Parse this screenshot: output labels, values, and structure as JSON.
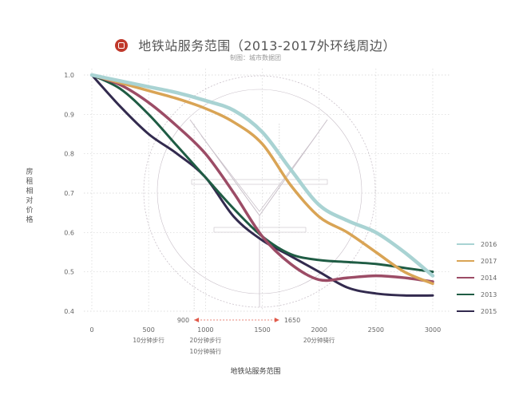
{
  "title": "地铁站服务范围（2013-2017外环线周边）",
  "subtitle_source_label": "制图：",
  "subtitle_source": "城市数据团",
  "colors": {
    "2016": "#a9d3d3",
    "2017": "#d9a455",
    "2014": "#9c4c66",
    "2013": "#1f5c44",
    "2015": "#322a4e",
    "grid": "#d4d4d4",
    "annotation": "#e05a4a",
    "watermark": "#c9c0c9"
  },
  "icons": {
    "logo": "red-circle-emblem-icon",
    "watermark": "metro-logo-watermark-icon"
  },
  "chart_data": {
    "type": "line",
    "xlabel": "地铁站服务范围",
    "ylabel": "房租相对价格",
    "xlim": [
      0,
      3000
    ],
    "ylim": [
      0.4,
      1.0
    ],
    "x_ticks": [
      0,
      500,
      1000,
      1500,
      2000,
      2500,
      3000
    ],
    "y_ticks": [
      0.4,
      0.5,
      0.6,
      0.7,
      0.8,
      0.9,
      1.0
    ],
    "grid": true,
    "legend_position": "right",
    "x_annotations": [
      {
        "x": 500,
        "label": "10分钟步行"
      },
      {
        "x": 1000,
        "label": "20分钟步行"
      },
      {
        "x": 1000,
        "label": "10分钟骑行"
      },
      {
        "x": 2000,
        "label": "20分钟骑行"
      }
    ],
    "range_marker": {
      "from": 900,
      "to": 1650,
      "from_label": "900",
      "to_label": "1650"
    },
    "series": [
      {
        "name": "2016",
        "x": [
          0,
          250,
          500,
          750,
          1000,
          1250,
          1500,
          1750,
          2000,
          2250,
          2500,
          2750,
          3000
        ],
        "values": [
          1.0,
          0.985,
          0.97,
          0.955,
          0.935,
          0.91,
          0.855,
          0.76,
          0.67,
          0.63,
          0.6,
          0.55,
          0.49
        ]
      },
      {
        "name": "2017",
        "x": [
          0,
          250,
          500,
          750,
          1000,
          1250,
          1500,
          1750,
          2000,
          2250,
          2500,
          2750,
          3000
        ],
        "values": [
          1.0,
          0.98,
          0.96,
          0.94,
          0.915,
          0.88,
          0.825,
          0.72,
          0.64,
          0.6,
          0.55,
          0.5,
          0.47
        ]
      },
      {
        "name": "2014",
        "x": [
          0,
          250,
          500,
          750,
          1000,
          1250,
          1500,
          1750,
          2000,
          2250,
          2500,
          2750,
          3000
        ],
        "values": [
          1.0,
          0.975,
          0.93,
          0.87,
          0.8,
          0.7,
          0.59,
          0.52,
          0.48,
          0.485,
          0.49,
          0.485,
          0.475
        ]
      },
      {
        "name": "2013",
        "x": [
          0,
          250,
          500,
          750,
          1000,
          1250,
          1500,
          1750,
          2000,
          2250,
          2500,
          2750,
          3000
        ],
        "values": [
          1.0,
          0.965,
          0.9,
          0.82,
          0.74,
          0.66,
          0.59,
          0.545,
          0.53,
          0.525,
          0.52,
          0.51,
          0.5
        ]
      },
      {
        "name": "2015",
        "x": [
          0,
          250,
          500,
          750,
          1000,
          1250,
          1500,
          1750,
          2000,
          2250,
          2500,
          2750,
          3000
        ],
        "values": [
          1.0,
          0.92,
          0.85,
          0.8,
          0.74,
          0.64,
          0.58,
          0.54,
          0.5,
          0.46,
          0.445,
          0.44,
          0.44
        ]
      }
    ]
  }
}
